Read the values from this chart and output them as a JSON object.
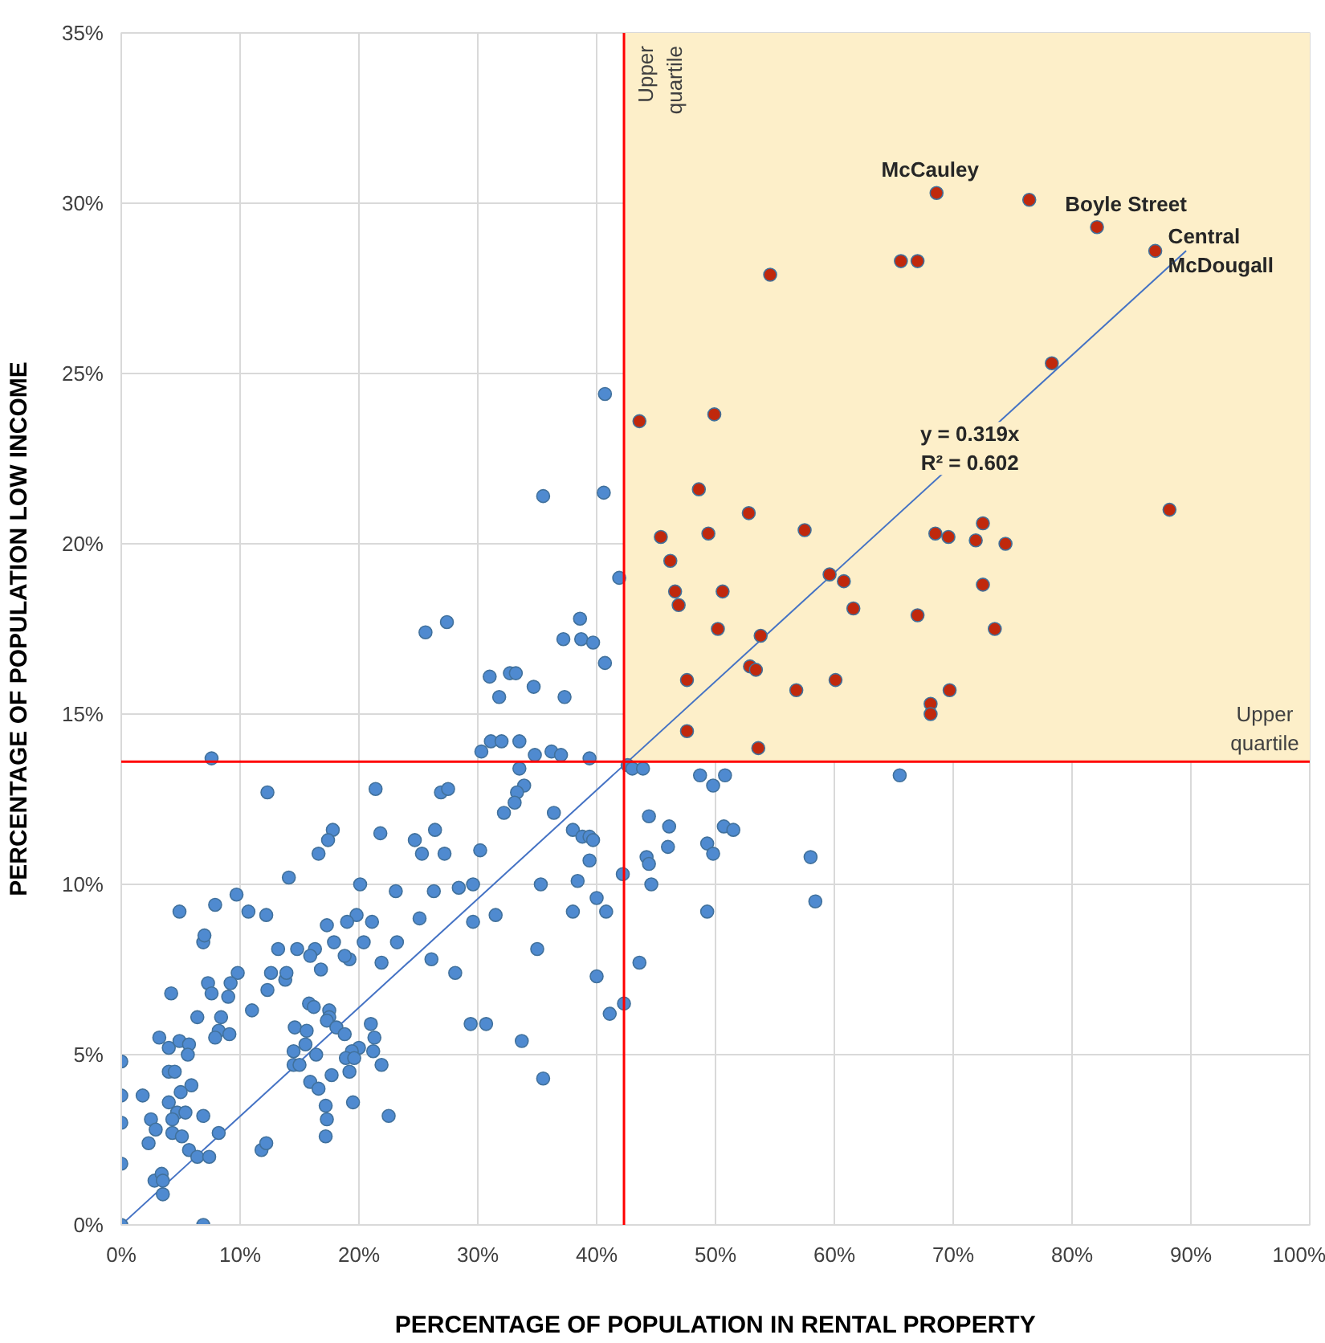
{
  "chart_data": {
    "type": "scatter",
    "marker": "circle",
    "grid": true,
    "xlabel": "PERCENTAGE OF POPULATION IN RENTAL PROPERTY",
    "ylabel": "PERCENTAGE OF POPULATION LOW INCOME",
    "xlim": [
      0,
      100
    ],
    "ylim": [
      0,
      35
    ],
    "xticks": [
      {
        "value": 0,
        "label": "0%"
      },
      {
        "value": 10,
        "label": "10%"
      },
      {
        "value": 20,
        "label": "20%"
      },
      {
        "value": 30,
        "label": "30%"
      },
      {
        "value": 40,
        "label": "40%"
      },
      {
        "value": 50,
        "label": "50%"
      },
      {
        "value": 60,
        "label": "60%"
      },
      {
        "value": 70,
        "label": "70%"
      },
      {
        "value": 80,
        "label": "80%"
      },
      {
        "value": 90,
        "label": "90%"
      },
      {
        "value": 100,
        "label": "100%"
      }
    ],
    "yticks": [
      {
        "value": 0,
        "label": "0%"
      },
      {
        "value": 5,
        "label": "5%"
      },
      {
        "value": 10,
        "label": "10%"
      },
      {
        "value": 15,
        "label": "15%"
      },
      {
        "value": 20,
        "label": "20%"
      },
      {
        "value": 25,
        "label": "25%"
      },
      {
        "value": 30,
        "label": "30%"
      },
      {
        "value": 35,
        "label": "35%"
      }
    ],
    "ref_lines": [
      {
        "axis": "x",
        "value": 42.3,
        "label": "Upper\nquartile",
        "color": "#ff0000"
      },
      {
        "axis": "y",
        "value": 13.6,
        "label": "Upper\nquartile",
        "color": "#ff0000"
      }
    ],
    "bands": [
      {
        "axis": "x",
        "from": 42.3,
        "to": 100,
        "color": "#fdefc9"
      }
    ],
    "annotations": [
      {
        "text": "McCauley",
        "x": 68.6,
        "y": 30.3
      },
      {
        "text": "Boyle Street",
        "x": 82.1,
        "y": 29.3
      },
      {
        "text": "Central\nMcDougall",
        "x": 87.0,
        "y": 28.6
      },
      {
        "text": "y = 0.319x\nR² = 0.602",
        "x": 71.4,
        "y": 22.8
      }
    ],
    "series": [
      {
        "color": "#4f8ad0",
        "x": [
          7.6,
          12.3,
          21.4,
          26.9,
          27.5,
          17.8,
          17.4,
          16.6,
          21.8,
          24.7,
          26.4,
          25.3,
          27.2,
          14.1,
          20.1,
          23.1,
          26.3,
          28.4,
          9.7,
          4.9,
          7.9,
          10.7,
          12.2,
          19.8,
          19.0,
          21.1,
          17.3,
          25.1,
          6.9,
          7.0,
          13.2,
          14.8,
          16.3,
          17.9,
          20.4,
          23.2,
          15.9,
          16.8,
          19.2,
          18.8,
          21.9,
          26.1,
          28.1,
          9.8,
          9.2,
          7.3,
          7.6,
          9.0,
          4.2,
          12.6,
          13.8,
          13.9,
          12.3,
          11.0,
          6.4,
          8.4,
          8.2,
          7.9,
          9.1,
          15.8,
          16.2,
          17.5,
          17.5,
          17.3,
          18.1,
          18.8,
          14.6,
          15.6,
          21.0,
          21.3,
          21.2,
          21.9,
          20.0,
          19.4,
          18.9,
          19.6,
          14.5,
          15.5,
          16.4,
          14.5,
          15.0,
          19.2,
          17.7,
          15.9,
          16.6,
          17.2,
          17.3,
          17.2,
          19.5,
          22.5,
          29.4,
          30.7,
          33.7,
          3.2,
          4.0,
          4.9,
          5.7,
          5.6,
          4.0,
          4.5,
          5.9,
          5.0,
          0,
          1.8,
          0,
          0,
          4.0,
          4.7,
          5.4,
          4.3,
          4.3,
          5.1,
          2.5,
          2.9,
          2.3,
          6.9,
          8.2,
          5.7,
          6.4,
          7.4,
          11.8,
          12.2,
          0,
          2.8,
          3.4,
          3.5,
          3.5,
          0,
          6.9,
          40.7,
          35.5,
          40.6,
          41.9,
          25.6,
          27.4,
          38.6,
          37.2,
          38.7,
          39.7,
          40.7,
          31.0,
          31.8,
          32.7,
          33.2,
          34.7,
          37.3,
          30.3,
          31.1,
          32.0,
          33.5,
          34.8,
          36.2,
          37.0,
          39.4,
          42.6,
          43.0,
          43.9,
          33.5,
          33.9,
          33.3,
          33.1,
          32.2,
          36.4,
          38.0,
          38.8,
          39.4,
          39.7,
          44.4,
          46.1,
          48.7,
          49.8,
          50.8,
          50.7,
          51.5,
          44.2,
          44.4,
          46.0,
          44.6,
          49.3,
          49.8,
          42.2,
          35.3,
          38.4,
          39.4,
          40.0,
          40.8,
          38.0,
          30.2,
          29.6,
          49.3,
          31.5,
          29.6,
          65.5,
          58.0,
          58.4,
          43.6,
          42.3,
          41.1,
          35.5,
          40.0,
          35.0
        ],
        "values": [
          13.7,
          12.7,
          12.8,
          12.7,
          12.8,
          11.6,
          11.3,
          10.9,
          11.5,
          11.3,
          11.6,
          10.9,
          10.9,
          10.2,
          10.0,
          9.8,
          9.8,
          9.9,
          9.7,
          9.2,
          9.4,
          9.2,
          9.1,
          9.1,
          8.9,
          8.9,
          8.8,
          9.0,
          8.3,
          8.5,
          8.1,
          8.1,
          8.1,
          8.3,
          8.3,
          8.3,
          7.9,
          7.5,
          7.8,
          7.9,
          7.7,
          7.8,
          7.4,
          7.4,
          7.1,
          7.1,
          6.8,
          6.7,
          6.8,
          7.4,
          7.2,
          7.4,
          6.9,
          6.3,
          6.1,
          6.1,
          5.7,
          5.5,
          5.6,
          6.5,
          6.4,
          6.3,
          6.1,
          6.0,
          5.8,
          5.6,
          5.8,
          5.7,
          5.9,
          5.5,
          5.1,
          4.7,
          5.2,
          5.1,
          4.9,
          4.9,
          5.1,
          5.3,
          5.0,
          4.7,
          4.7,
          4.5,
          4.4,
          4.2,
          4.0,
          3.5,
          3.1,
          2.6,
          3.6,
          3.2,
          5.9,
          5.9,
          5.4,
          5.5,
          5.2,
          5.4,
          5.3,
          5.0,
          4.5,
          4.5,
          4.1,
          3.9,
          4.8,
          3.8,
          3.8,
          3.0,
          3.6,
          3.3,
          3.3,
          3.1,
          2.7,
          2.6,
          3.1,
          2.8,
          2.4,
          3.2,
          2.7,
          2.2,
          2.0,
          2.0,
          2.2,
          2.4,
          1.8,
          1.3,
          1.5,
          1.3,
          0.9,
          0,
          0,
          24.4,
          21.4,
          21.5,
          19.0,
          17.4,
          17.7,
          17.8,
          17.2,
          17.2,
          17.1,
          16.5,
          16.1,
          15.5,
          16.2,
          16.2,
          15.8,
          15.5,
          13.9,
          14.2,
          14.2,
          14.2,
          13.8,
          13.9,
          13.8,
          13.7,
          13.5,
          13.4,
          13.4,
          13.4,
          12.9,
          12.7,
          12.4,
          12.1,
          12.1,
          11.6,
          11.4,
          11.4,
          11.3,
          12.0,
          11.7,
          13.2,
          12.9,
          13.2,
          11.7,
          11.6,
          10.8,
          10.6,
          11.1,
          10.0,
          11.2,
          10.9,
          10.3,
          10.0,
          10.1,
          10.7,
          9.6,
          9.2,
          9.2,
          11.0,
          10.0,
          9.2,
          9.1,
          8.9,
          13.2,
          10.8,
          9.5,
          7.7,
          6.5,
          6.2,
          4.3,
          7.3,
          8.1
        ]
      },
      {
        "color": "#c0280c",
        "x": [
          43.6,
          49.9,
          48.6,
          52.8,
          45.4,
          49.4,
          57.5,
          68.5,
          69.6,
          71.9,
          72.5,
          74.4,
          46.2,
          59.6,
          60.8,
          46.6,
          50.6,
          46.9,
          61.6,
          72.5,
          67.0,
          50.2,
          53.8,
          73.5,
          47.6,
          52.9,
          53.4,
          56.8,
          60.1,
          69.7,
          68.1,
          68.1,
          47.6,
          53.6,
          54.6,
          65.6,
          67.0,
          68.6,
          76.4,
          82.1,
          87.0,
          78.3,
          88.2
        ],
        "values": [
          23.6,
          23.8,
          21.6,
          20.9,
          20.2,
          20.3,
          20.4,
          20.3,
          20.2,
          20.1,
          20.6,
          20.0,
          19.5,
          19.1,
          18.9,
          18.6,
          18.6,
          18.2,
          18.1,
          18.8,
          17.9,
          17.5,
          17.3,
          17.5,
          16.0,
          16.4,
          16.3,
          15.7,
          16.0,
          15.7,
          15.3,
          15.0,
          14.5,
          14.0,
          27.9,
          28.3,
          28.3,
          30.3,
          30.1,
          29.3,
          28.6,
          25.3,
          21.0
        ]
      },
      {
        "type": "line",
        "marker": "none",
        "color": "#4472c4",
        "x": [
          0,
          89.6
        ],
        "values": [
          0,
          28.6
        ]
      }
    ]
  }
}
